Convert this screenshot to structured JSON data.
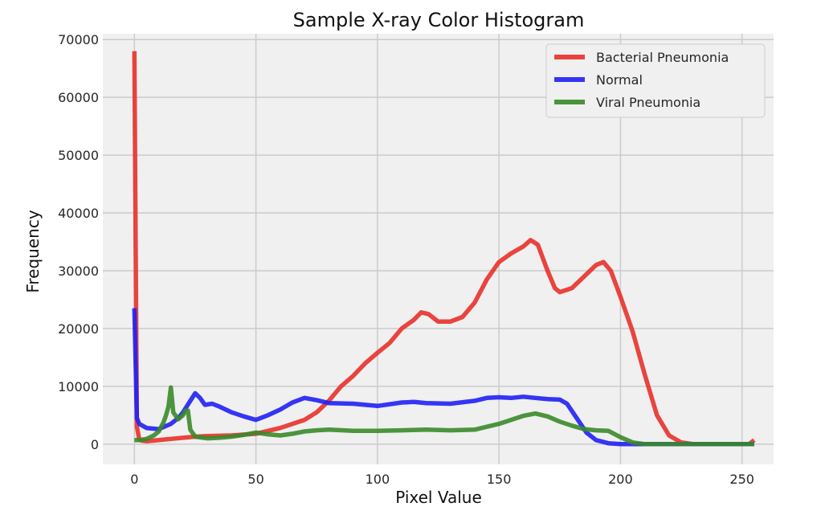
{
  "chart_data": {
    "type": "line",
    "title": "Sample X-ray Color Histogram",
    "xlabel": "Pixel Value",
    "ylabel": "Frequency",
    "xlim": [
      -13,
      263
    ],
    "ylim": [
      -3500,
      71000
    ],
    "xticks": [
      0,
      50,
      100,
      150,
      200,
      250
    ],
    "yticks": [
      0,
      10000,
      20000,
      30000,
      40000,
      50000,
      60000,
      70000
    ],
    "grid": true,
    "legend_position": "top-right",
    "background": "#f0f0f0",
    "series": [
      {
        "name": "Bacterial Pneumonia",
        "color": "#e8312a",
        "points": [
          [
            0,
            68000
          ],
          [
            1,
            3000
          ],
          [
            2,
            800
          ],
          [
            3,
            600
          ],
          [
            5,
            500
          ],
          [
            10,
            700
          ],
          [
            15,
            900
          ],
          [
            20,
            1100
          ],
          [
            25,
            1300
          ],
          [
            30,
            1400
          ],
          [
            40,
            1500
          ],
          [
            50,
            1800
          ],
          [
            55,
            2300
          ],
          [
            60,
            2800
          ],
          [
            65,
            3500
          ],
          [
            70,
            4200
          ],
          [
            75,
            5500
          ],
          [
            80,
            7500
          ],
          [
            85,
            10000
          ],
          [
            90,
            11800
          ],
          [
            95,
            14000
          ],
          [
            100,
            15800
          ],
          [
            105,
            17500
          ],
          [
            110,
            20000
          ],
          [
            115,
            21500
          ],
          [
            118,
            22800
          ],
          [
            121,
            22500
          ],
          [
            125,
            21200
          ],
          [
            130,
            21200
          ],
          [
            135,
            22000
          ],
          [
            140,
            24500
          ],
          [
            145,
            28500
          ],
          [
            150,
            31500
          ],
          [
            155,
            33000
          ],
          [
            160,
            34200
          ],
          [
            163,
            35300
          ],
          [
            166,
            34500
          ],
          [
            170,
            30000
          ],
          [
            173,
            27000
          ],
          [
            175,
            26300
          ],
          [
            180,
            27000
          ],
          [
            185,
            29000
          ],
          [
            190,
            31000
          ],
          [
            193,
            31500
          ],
          [
            196,
            30000
          ],
          [
            200,
            25500
          ],
          [
            205,
            19500
          ],
          [
            210,
            12000
          ],
          [
            215,
            5000
          ],
          [
            220,
            1500
          ],
          [
            225,
            300
          ],
          [
            230,
            0
          ],
          [
            240,
            0
          ],
          [
            250,
            0
          ],
          [
            253,
            0
          ],
          [
            255,
            700
          ]
        ]
      },
      {
        "name": "Normal",
        "color": "#2020f5",
        "points": [
          [
            0,
            23500
          ],
          [
            1,
            4500
          ],
          [
            2,
            3500
          ],
          [
            5,
            2800
          ],
          [
            10,
            2600
          ],
          [
            15,
            3500
          ],
          [
            18,
            4500
          ],
          [
            20,
            5500
          ],
          [
            23,
            7500
          ],
          [
            25,
            8800
          ],
          [
            27,
            8000
          ],
          [
            29,
            6800
          ],
          [
            32,
            7000
          ],
          [
            35,
            6500
          ],
          [
            40,
            5500
          ],
          [
            45,
            4800
          ],
          [
            50,
            4200
          ],
          [
            55,
            5000
          ],
          [
            60,
            6000
          ],
          [
            65,
            7200
          ],
          [
            70,
            8000
          ],
          [
            75,
            7600
          ],
          [
            80,
            7100
          ],
          [
            90,
            7000
          ],
          [
            100,
            6600
          ],
          [
            110,
            7200
          ],
          [
            115,
            7300
          ],
          [
            120,
            7100
          ],
          [
            130,
            7000
          ],
          [
            140,
            7500
          ],
          [
            145,
            8000
          ],
          [
            150,
            8100
          ],
          [
            155,
            8000
          ],
          [
            160,
            8200
          ],
          [
            165,
            8000
          ],
          [
            170,
            7800
          ],
          [
            175,
            7700
          ],
          [
            178,
            7000
          ],
          [
            182,
            4500
          ],
          [
            186,
            2000
          ],
          [
            190,
            700
          ],
          [
            195,
            150
          ],
          [
            200,
            0
          ],
          [
            210,
            0
          ],
          [
            220,
            0
          ],
          [
            230,
            0
          ],
          [
            240,
            0
          ],
          [
            250,
            0
          ],
          [
            255,
            0
          ]
        ]
      },
      {
        "name": "Viral Pneumonia",
        "color": "#3a8a2a",
        "points": [
          [
            0,
            700
          ],
          [
            2,
            700
          ],
          [
            5,
            900
          ],
          [
            8,
            1500
          ],
          [
            10,
            2200
          ],
          [
            12,
            3800
          ],
          [
            13,
            5000
          ],
          [
            14,
            6500
          ],
          [
            15,
            9800
          ],
          [
            16,
            5500
          ],
          [
            18,
            4300
          ],
          [
            20,
            5000
          ],
          [
            21,
            5800
          ],
          [
            22,
            5800
          ],
          [
            23,
            2500
          ],
          [
            25,
            1300
          ],
          [
            30,
            1000
          ],
          [
            35,
            1100
          ],
          [
            40,
            1300
          ],
          [
            45,
            1600
          ],
          [
            50,
            2000
          ],
          [
            55,
            1700
          ],
          [
            60,
            1500
          ],
          [
            65,
            1800
          ],
          [
            70,
            2200
          ],
          [
            75,
            2400
          ],
          [
            80,
            2500
          ],
          [
            90,
            2300
          ],
          [
            100,
            2300
          ],
          [
            110,
            2400
          ],
          [
            120,
            2500
          ],
          [
            130,
            2400
          ],
          [
            140,
            2500
          ],
          [
            145,
            3000
          ],
          [
            150,
            3500
          ],
          [
            155,
            4200
          ],
          [
            160,
            4900
          ],
          [
            165,
            5300
          ],
          [
            170,
            4800
          ],
          [
            175,
            3900
          ],
          [
            180,
            3200
          ],
          [
            185,
            2600
          ],
          [
            190,
            2400
          ],
          [
            195,
            2300
          ],
          [
            200,
            1200
          ],
          [
            205,
            300
          ],
          [
            210,
            0
          ],
          [
            220,
            0
          ],
          [
            230,
            0
          ],
          [
            240,
            0
          ],
          [
            250,
            0
          ],
          [
            255,
            0
          ]
        ]
      }
    ]
  }
}
